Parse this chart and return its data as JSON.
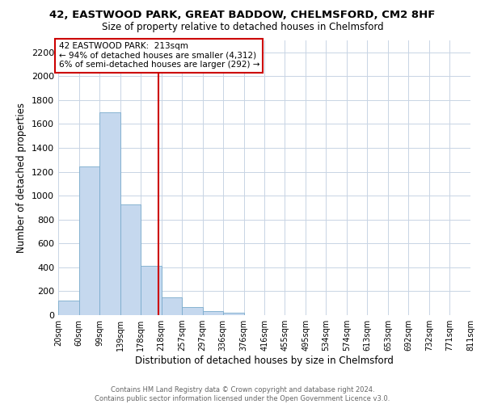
{
  "title": "42, EASTWOOD PARK, GREAT BADDOW, CHELMSFORD, CM2 8HF",
  "subtitle": "Size of property relative to detached houses in Chelmsford",
  "xlabel": "Distribution of detached houses by size in Chelmsford",
  "ylabel": "Number of detached properties",
  "bar_color": "#c5d8ee",
  "bar_edge_color": "#7aabcc",
  "background_color": "#ffffff",
  "grid_color": "#c8d4e4",
  "annotation_text_line1": "42 EASTWOOD PARK:  213sqm",
  "annotation_text_line2": "← 94% of detached houses are smaller (4,312)",
  "annotation_text_line3": "6% of semi-detached houses are larger (292) →",
  "vline_value": 213,
  "vline_color": "#cc0000",
  "bin_edges": [
    20,
    60,
    99,
    139,
    178,
    218,
    257,
    297,
    336,
    376,
    416,
    455,
    495,
    534,
    574,
    613,
    653,
    692,
    732,
    771,
    811
  ],
  "bar_heights": [
    120,
    1245,
    1695,
    930,
    410,
    150,
    70,
    35,
    20,
    0,
    0,
    0,
    0,
    0,
    0,
    0,
    0,
    0,
    0,
    0
  ],
  "ylim": [
    0,
    2300
  ],
  "yticks": [
    0,
    200,
    400,
    600,
    800,
    1000,
    1200,
    1400,
    1600,
    1800,
    2000,
    2200
  ],
  "footer_line1": "Contains HM Land Registry data © Crown copyright and database right 2024.",
  "footer_line2": "Contains public sector information licensed under the Open Government Licence v3.0.",
  "annotation_box_edge_color": "#cc0000",
  "annotation_box_face_color": "#ffffff"
}
